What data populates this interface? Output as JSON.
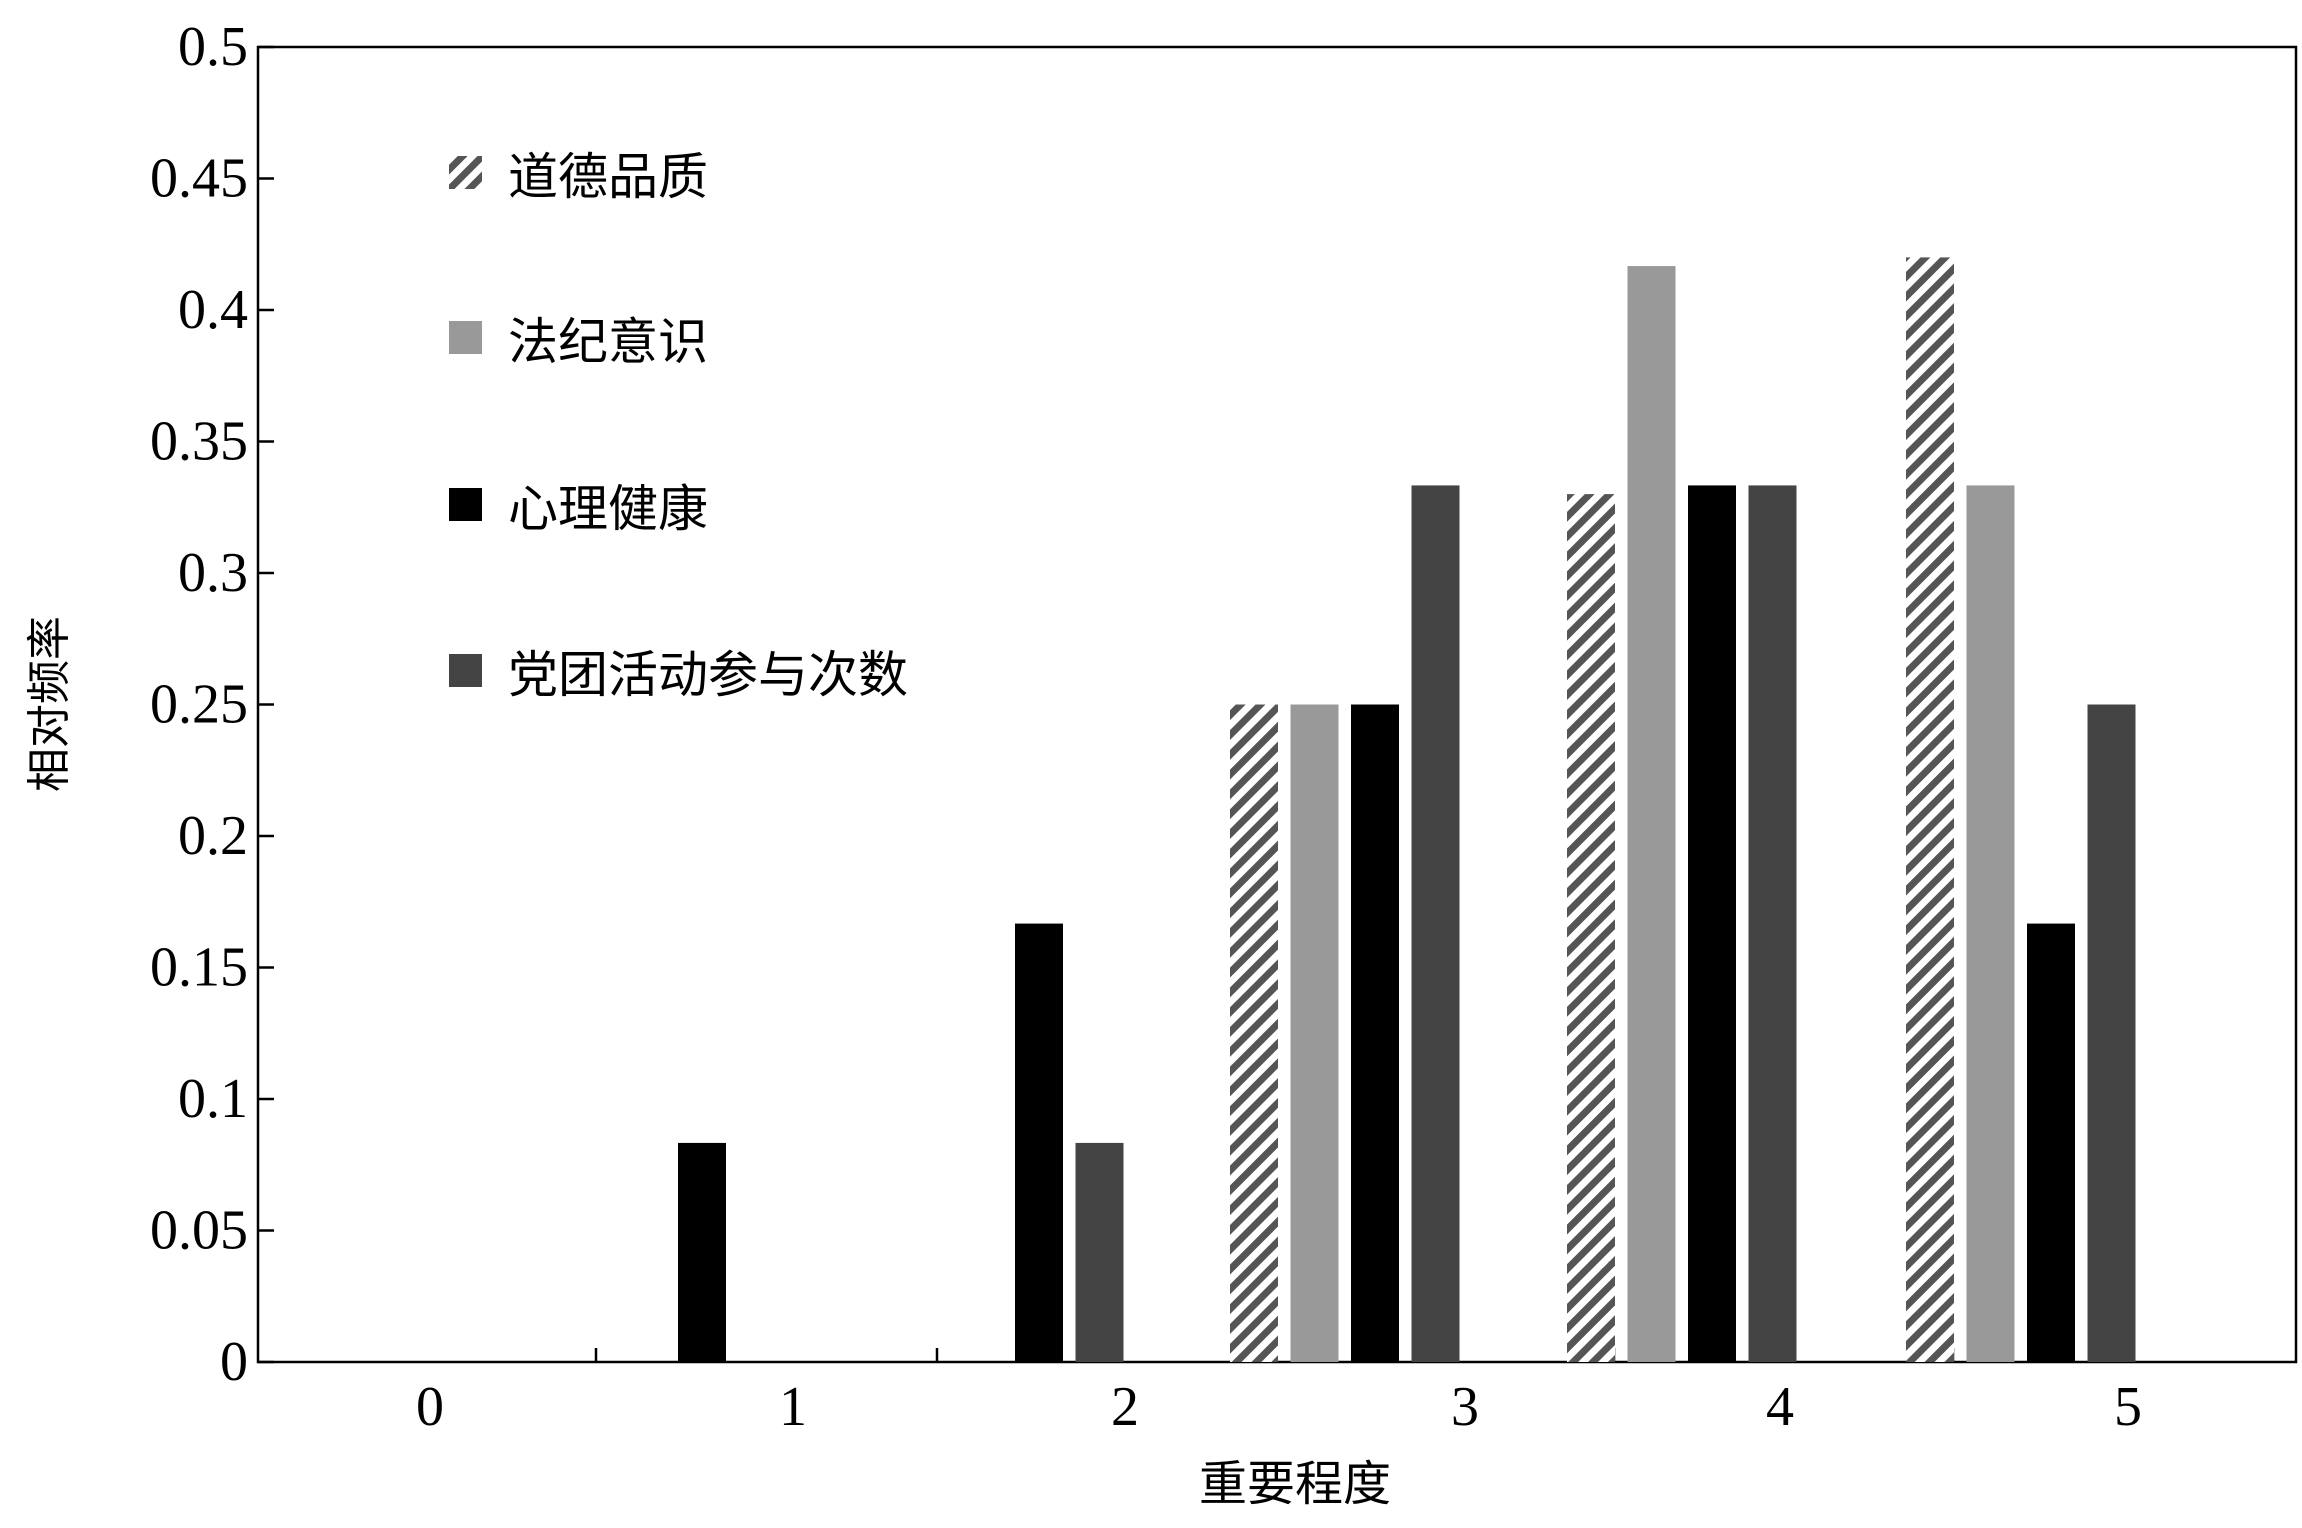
{
  "chart_data": {
    "type": "bar",
    "title": "",
    "xlabel": "重要程度",
    "ylabel": "相对频率",
    "categories": [
      "0",
      "1",
      "2",
      "3",
      "4",
      "5"
    ],
    "yticks": [
      "0",
      "0.05",
      "0.1",
      "0.15",
      "0.2",
      "0.25",
      "0.3",
      "0.35",
      "0.4",
      "0.45",
      "0.5"
    ],
    "ylim": [
      0,
      0.5
    ],
    "grid": false,
    "legend_position": "top-left",
    "series": [
      {
        "name": "道德品质",
        "fill": "hatched",
        "color": "#555555",
        "values": [
          0,
          0,
          0,
          0.25,
          0.33,
          0.42
        ]
      },
      {
        "name": "法纪意识",
        "fill": "solid",
        "color": "#999999",
        "values": [
          0,
          0,
          0,
          0.25,
          0.4167,
          0.3333
        ]
      },
      {
        "name": "心理健康",
        "fill": "solid",
        "color": "#000000",
        "values": [
          0,
          0.0833,
          0.1667,
          0.25,
          0.3333,
          0.1667
        ]
      },
      {
        "name": "党团活动参与次数",
        "fill": "solid",
        "color": "#444444",
        "values": [
          0,
          0,
          0.0833,
          0.3333,
          0.3333,
          0.25
        ]
      }
    ]
  }
}
